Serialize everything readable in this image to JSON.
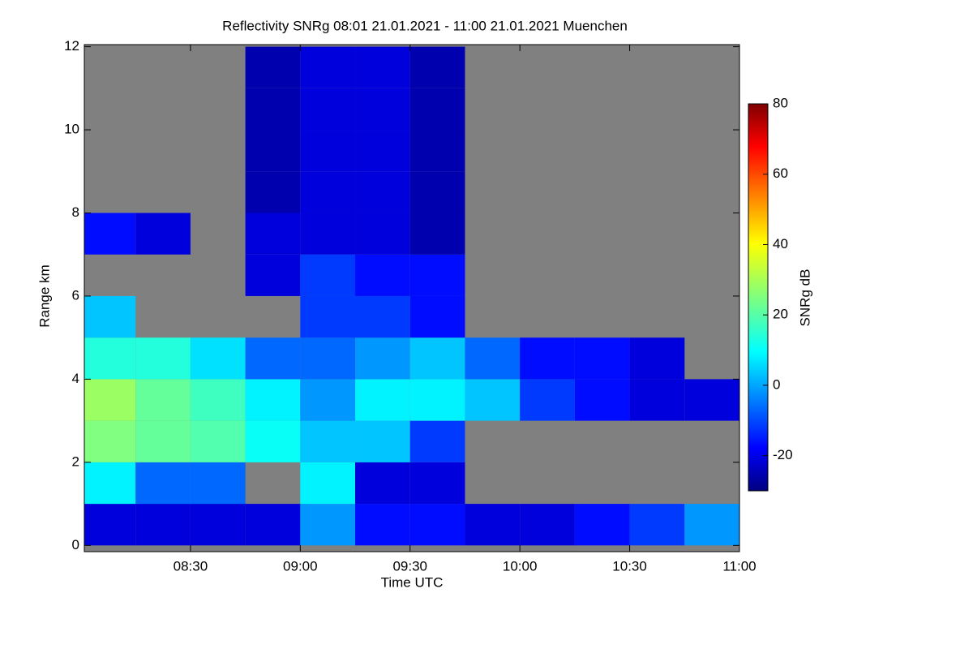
{
  "chart_data": {
    "type": "heatmap",
    "title": "Reflectivity SNRg   08:01 21.01.2021 - 11:00 21.01.2021 Muenchen",
    "x_label": "Time UTC",
    "y_label": "Range km",
    "colorbar_label": "SNRg dB",
    "colormap": "jet",
    "background": "#808080",
    "xlim": [
      "08:01",
      "11:00"
    ],
    "xticks": [
      "08:30",
      "09:00",
      "09:30",
      "10:00",
      "10:30",
      "11:00"
    ],
    "ylim": [
      -0.15,
      12.05
    ],
    "yticks": [
      0,
      2,
      4,
      6,
      8,
      10,
      12
    ],
    "clim": [
      -30,
      80
    ],
    "cticks": [
      -20,
      0,
      20,
      40,
      60,
      80
    ],
    "x_bins": [
      "08:01",
      "08:15",
      "08:30",
      "08:45",
      "09:00",
      "09:15",
      "09:30",
      "09:45",
      "10:00",
      "10:15",
      "10:30",
      "10:45",
      "11:00"
    ],
    "y_bins": [
      0,
      1,
      2,
      3,
      4,
      5,
      6,
      7,
      8,
      9,
      10,
      11,
      12
    ],
    "values": [
      [
        -20,
        -20,
        -20,
        -20,
        0,
        -15,
        -15,
        -20,
        -20,
        -15,
        -10,
        0
      ],
      [
        10,
        -5,
        -5,
        null,
        10,
        -20,
        -20,
        null,
        null,
        null,
        null,
        null
      ],
      [
        25,
        22,
        20,
        12,
        5,
        5,
        -10,
        null,
        null,
        null,
        null,
        null
      ],
      [
        28,
        22,
        18,
        10,
        0,
        10,
        10,
        5,
        -10,
        -15,
        -20,
        -20
      ],
      [
        15,
        15,
        8,
        -5,
        -5,
        0,
        5,
        -5,
        -15,
        -15,
        -20,
        null
      ],
      [
        5,
        null,
        null,
        null,
        -10,
        -10,
        -15,
        null,
        null,
        null,
        null,
        null
      ],
      [
        null,
        null,
        null,
        -20,
        -10,
        -15,
        -15,
        null,
        null,
        null,
        null,
        null
      ],
      [
        -15,
        -20,
        null,
        -20,
        -20,
        -20,
        -25,
        null,
        null,
        null,
        null,
        null
      ],
      [
        null,
        null,
        null,
        -25,
        -20,
        -20,
        -25,
        null,
        null,
        null,
        null,
        null
      ],
      [
        null,
        null,
        null,
        -25,
        -20,
        -20,
        -25,
        null,
        null,
        null,
        null,
        null
      ],
      [
        null,
        null,
        null,
        -25,
        -20,
        -20,
        -25,
        null,
        null,
        null,
        null,
        null
      ],
      [
        null,
        null,
        null,
        -25,
        -20,
        -20,
        -25,
        null,
        null,
        null,
        null,
        null
      ]
    ]
  }
}
